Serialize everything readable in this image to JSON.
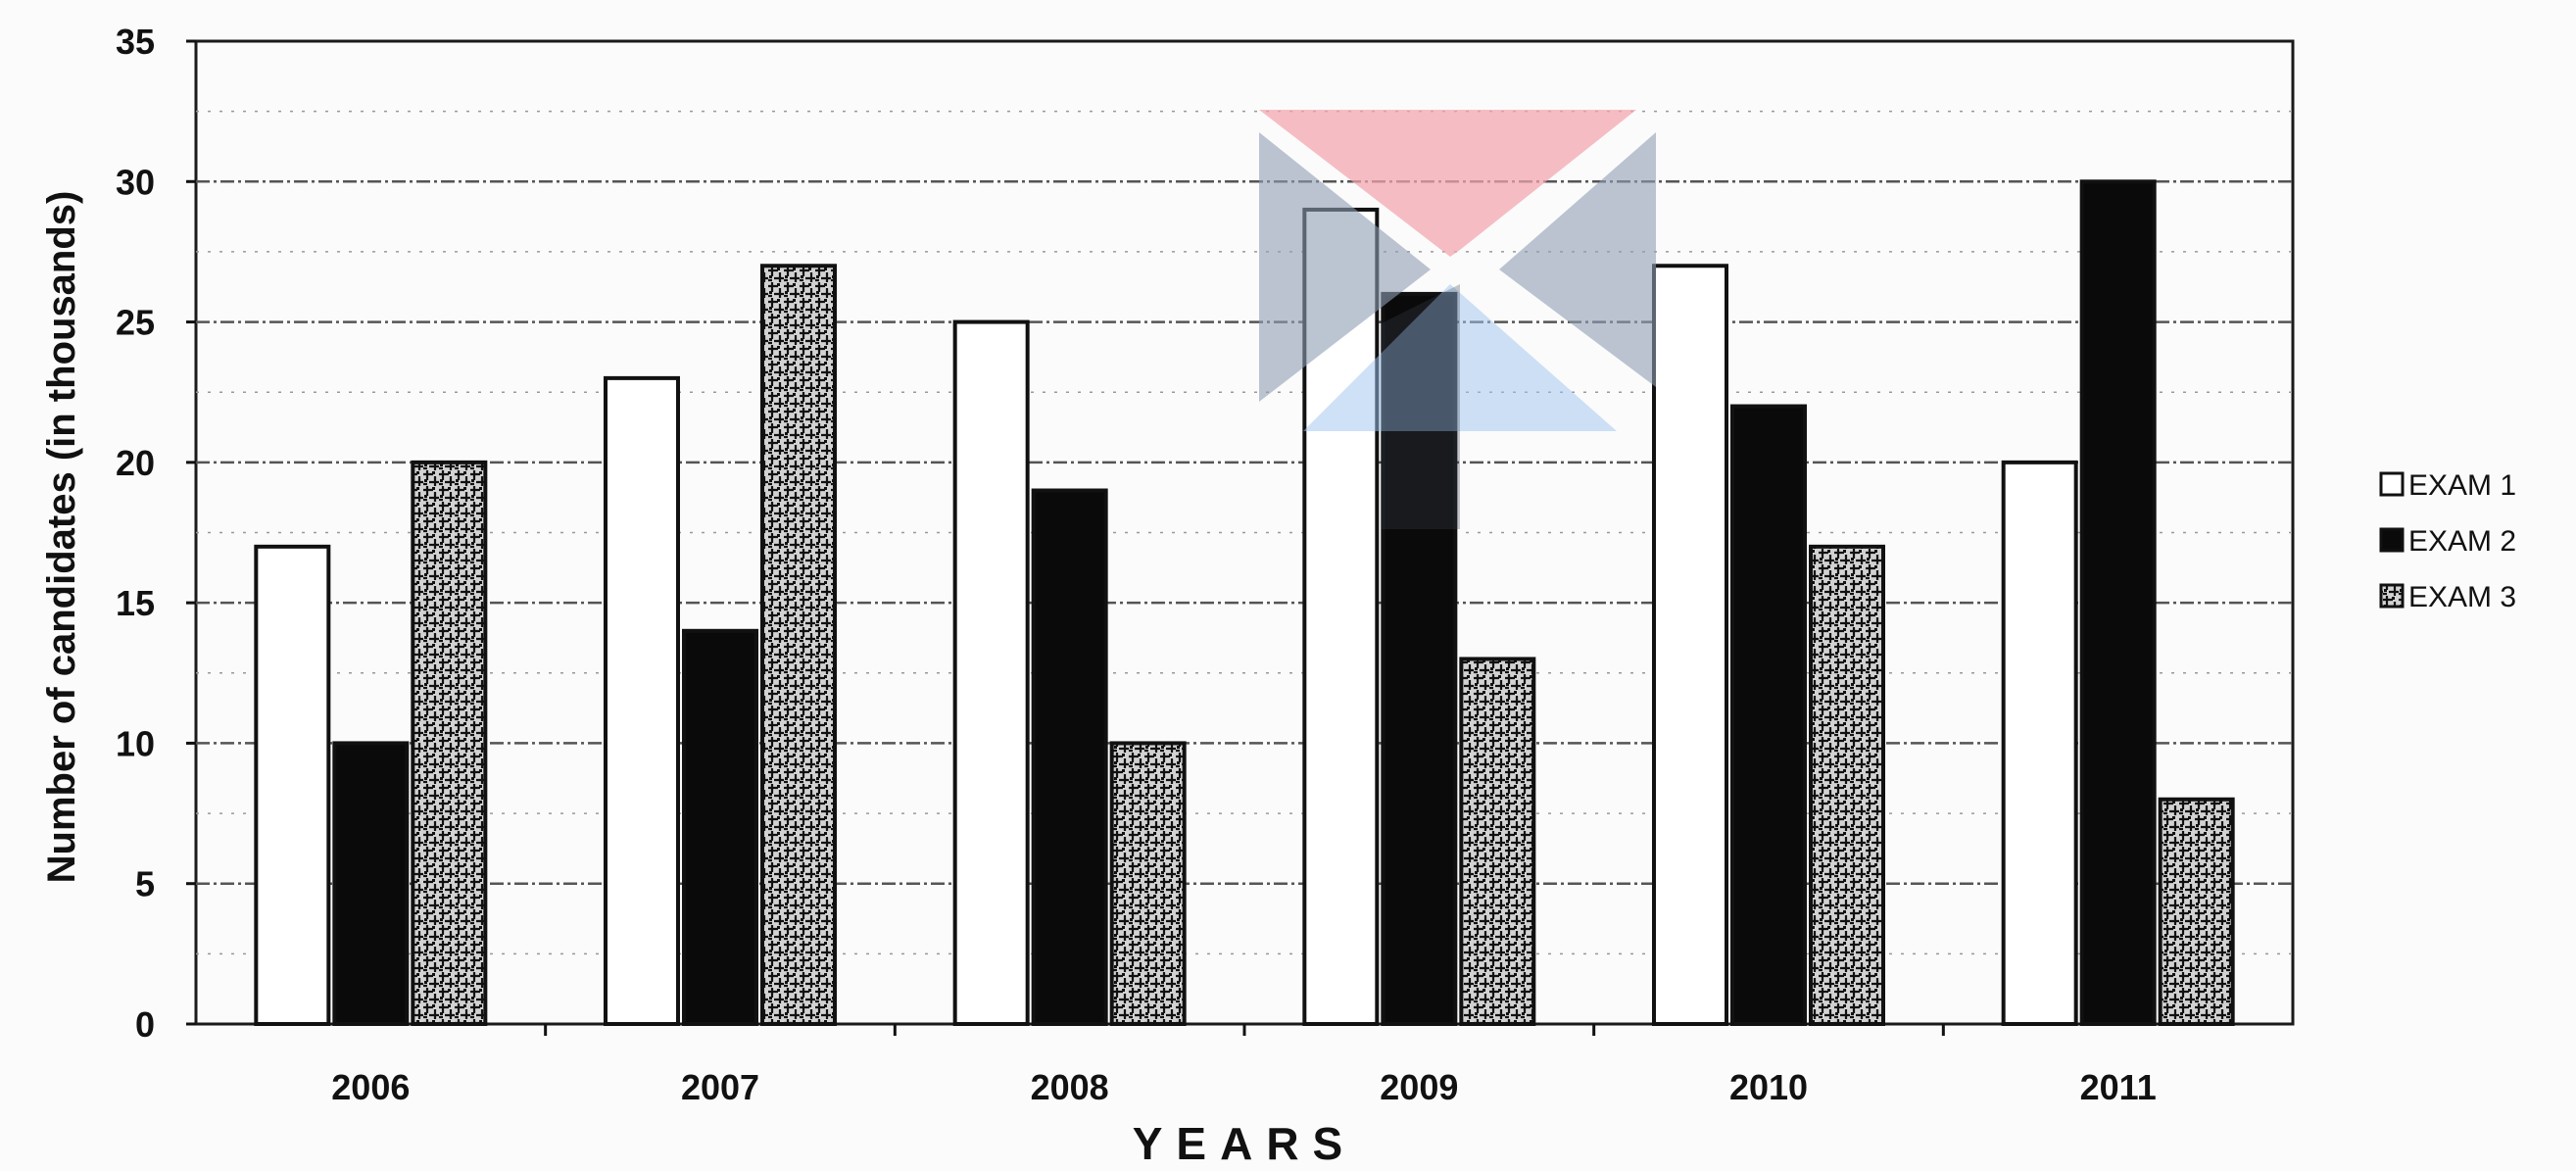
{
  "chart_data": {
    "type": "bar",
    "title": "",
    "xlabel": "YEARS",
    "ylabel": "Number of candidates (in thousands)",
    "ylim": [
      0,
      35
    ],
    "yticks": [
      "0",
      "5",
      "10",
      "15",
      "20",
      "25",
      "30",
      "35"
    ],
    "categories": [
      "2006",
      "2007",
      "2008",
      "2009",
      "2010",
      "2011"
    ],
    "series": [
      {
        "name": "EXAM 1",
        "values": [
          17,
          23,
          25,
          29,
          27,
          20
        ]
      },
      {
        "name": "EXAM 2",
        "values": [
          10,
          14,
          19,
          26,
          22,
          30
        ]
      },
      {
        "name": "EXAM 3",
        "values": [
          20,
          27,
          10,
          13,
          17,
          8
        ]
      }
    ],
    "grid": true,
    "legend_position": "right",
    "colors": {
      "exam1": "#ffffff",
      "exam2": "#0a0a0a",
      "exam3": "#d8d8d8",
      "frame": "#1a1a1a"
    }
  }
}
